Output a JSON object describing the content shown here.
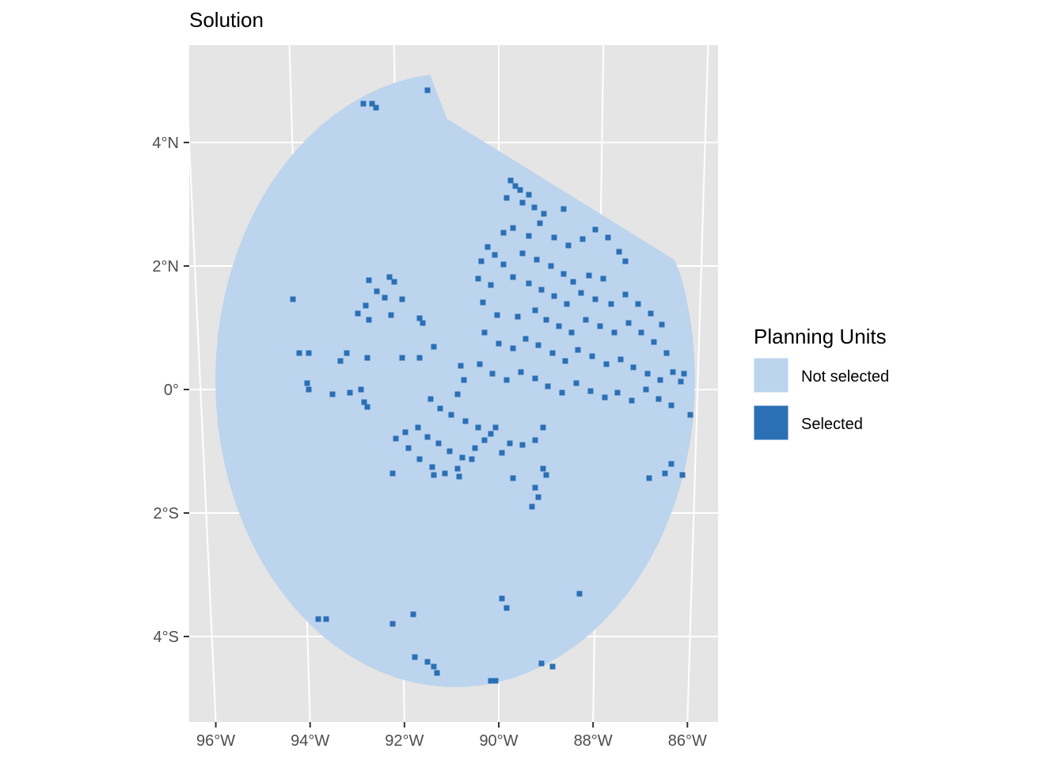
{
  "title": "Solution",
  "axes": {
    "x_ticks": [
      {
        "lon": -96,
        "label": "96°W"
      },
      {
        "lon": -94,
        "label": "94°W"
      },
      {
        "lon": -92,
        "label": "92°W"
      },
      {
        "lon": -90,
        "label": "90°W"
      },
      {
        "lon": -88,
        "label": "88°W"
      },
      {
        "lon": -86,
        "label": "86°W"
      }
    ],
    "y_ticks": [
      {
        "lat": 4,
        "label": "4°N"
      },
      {
        "lat": 2,
        "label": "2°N"
      },
      {
        "lat": 0,
        "label": "0°"
      },
      {
        "lat": -2,
        "label": "2°S"
      },
      {
        "lat": -4,
        "label": "4°S"
      }
    ],
    "lon_range": [
      -96.1,
      -85.6
    ],
    "lat_range": [
      -5.3,
      5.6
    ]
  },
  "legend": {
    "title": "Planning Units",
    "items": [
      {
        "label": "Not selected",
        "color": "#bcd4ee"
      },
      {
        "label": "Selected",
        "color": "#2b70b5"
      }
    ]
  },
  "colors": {
    "panel": "#e5e5e5",
    "grid": "#ffffff",
    "not_selected": "#bcd4ee",
    "selected": "#2b70b5"
  }
}
